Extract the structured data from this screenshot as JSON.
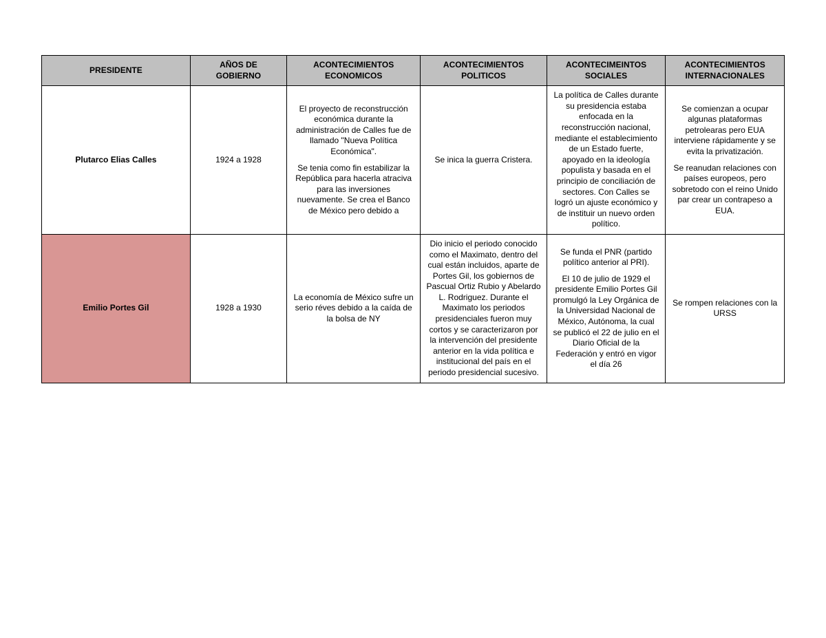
{
  "table": {
    "header_bg": "#c0c0c0",
    "highlight_bg": "#d99694",
    "border_color": "#000000",
    "columns": [
      {
        "label": "PRESIDENTE"
      },
      {
        "label": "AÑOS DE GOBIERNO"
      },
      {
        "label": "ACONTECIMIENTOS ECONOMICOS"
      },
      {
        "label": "ACONTECIMIENTOS POLITICOS"
      },
      {
        "label": "ACONTECIMEINTOS SOCIALES"
      },
      {
        "label": "ACONTECIMIENTOS INTERNACIONALES"
      }
    ],
    "rows": [
      {
        "president": "Plutarco Elias Calles",
        "years": "1924 a 1928",
        "highlight": false,
        "econ_p1": "El proyecto de reconstrucción económica durante la administración de Calles fue de llamado \"Nueva Política Económica\".",
        "econ_p2": "Se tenia como fin estabilizar la República para hacerla atraciva para las inversiones nuevamente. Se crea el Banco de México pero debido a",
        "pol": "Se inica la guerra Cristera.",
        "soc": "La política de Calles durante su presidencia estaba enfocada en la reconstrucción nacional, mediante el establecimiento de un Estado fuerte, apoyado en la ideología populista y basada en el principio de conciliación de sectores. Con Calles se logró un ajuste económico y de instituir un nuevo orden político.",
        "int_p1": "Se comienzan a ocupar algunas plataformas petrolearas pero EUA interviene rápidamente y se evita la privatización.",
        "int_p2": "Se reanudan relaciones con países europeos, pero sobretodo con el reino Unido par crear un contrapeso a EUA."
      },
      {
        "president": "Emilio Portes Gil",
        "years": "1928 a 1930",
        "highlight": true,
        "econ": "La economía de México sufre un serio réves debido a la caída de la bolsa de NY",
        "pol": "Dio inicio el periodo conocido como el Maximato, dentro del cual están incluidos, aparte de Portes Gil, los gobiernos de Pascual Ortiz Rubio y Abelardo L. Rodriguez. Durante el Maximato los periodos presidenciales fueron muy cortos y se caracterizaron por la intervención del presidente anterior en la vida política e institucional del país en el periodo presidencial sucesivo.",
        "soc_p1": "Se funda el PNR (partido político anterior al PRI).",
        "soc_p2": "El 10 de julio de 1929 el presidente Emilio Portes Gil promulgó la Ley Orgánica de la Universidad Nacional de México, Autónoma, la cual se publicó el 22 de julio en el Diario Oficial de la Federación y entró en vigor el día 26",
        "int": "Se rompen relaciones con la URSS"
      }
    ]
  }
}
